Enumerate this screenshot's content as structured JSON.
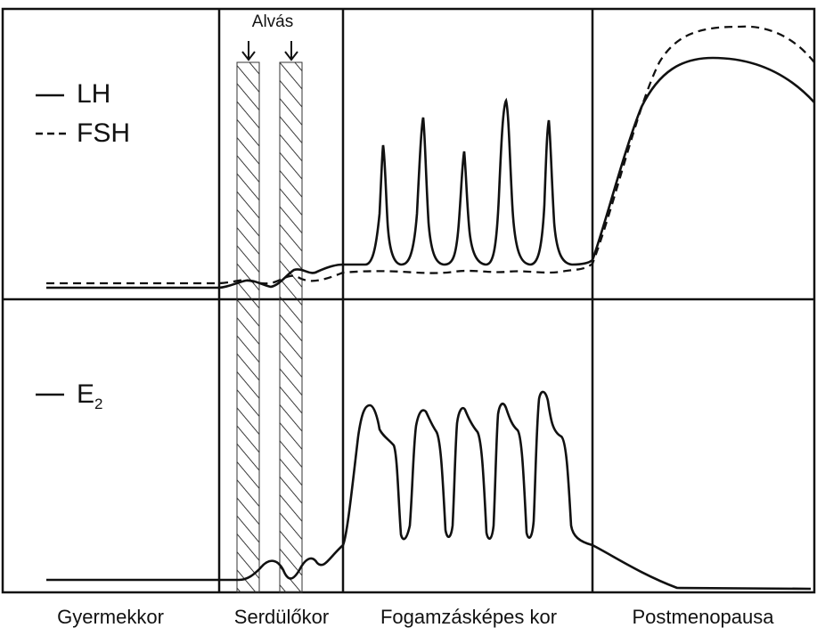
{
  "legend": {
    "lh": "LH",
    "fsh": "FSH",
    "e2_main": "E",
    "e2_sub": "2"
  },
  "sleep_label": "Alvás",
  "periods": [
    {
      "label": "Gyermekkor"
    },
    {
      "label": "Serdülőkor"
    },
    {
      "label": "Fogamzásképes kor"
    },
    {
      "label": "Postmenopausa"
    }
  ],
  "colors": {
    "line": "#111111",
    "background": "#ffffff"
  }
}
